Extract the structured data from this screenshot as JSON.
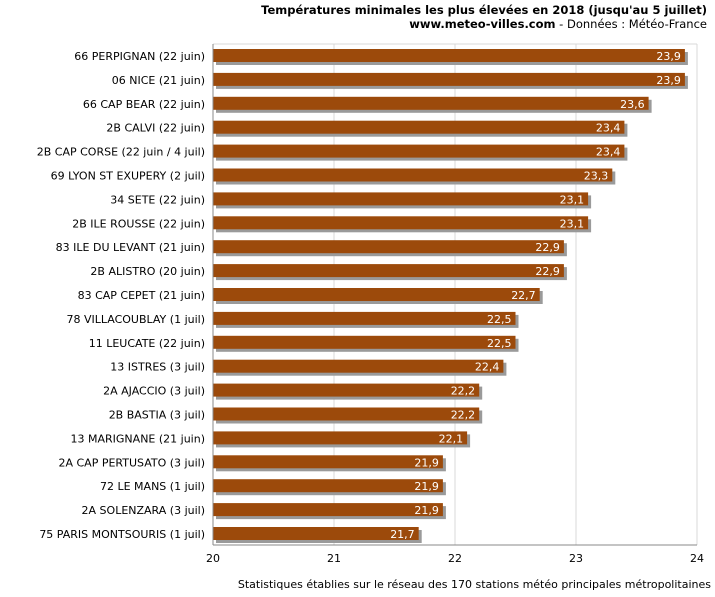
{
  "header": {
    "title": "Températures minimales les plus élevées en 2018 (jusqu'au 5 juillet)",
    "site": "www.meteo-villes.com",
    "source": " - Données : Météo-France"
  },
  "footer": {
    "note": "Statistiques établies sur le réseau des 170 stations météo principales métropolitaines"
  },
  "colors": {
    "bar": "#9c4a0b",
    "bar_shadow": "#9a9a9a",
    "grid": "#d8d8d8",
    "axis": "#888888"
  },
  "chart_data": {
    "type": "bar",
    "orientation": "horizontal",
    "categories": [
      "66 PERPIGNAN (22 juin)",
      "06 NICE (21 juin)",
      "66 CAP BEAR (22 juin)",
      "2B CALVI (22 juin)",
      "2B CAP CORSE (22 juin / 4 juil)",
      "69 LYON ST EXUPERY (2 juil)",
      "34 SETE (22 juin)",
      "2B ILE ROUSSE (22 juin)",
      "83 ILE DU LEVANT (21 juin)",
      "2B ALISTRO (20 juin)",
      "83 CAP CEPET (21 juin)",
      "78 VILLACOUBLAY (1 juil)",
      "11 LEUCATE (22 juin)",
      "13 ISTRES (3 juil)",
      "2A AJACCIO (3 juil)",
      "2B BASTIA (3 juil)",
      "13 MARIGNANE (21 juin)",
      "2A CAP PERTUSATO (3 juil)",
      "72 LE MANS (1 juil)",
      "2A SOLENZARA (3 juil)",
      "75 PARIS MONTSOURIS (1 juil)"
    ],
    "values": [
      23.9,
      23.9,
      23.6,
      23.4,
      23.4,
      23.3,
      23.1,
      23.1,
      22.9,
      22.9,
      22.7,
      22.5,
      22.5,
      22.4,
      22.2,
      22.2,
      22.1,
      21.9,
      21.9,
      21.9,
      21.7
    ],
    "value_labels": [
      "23,9",
      "23,9",
      "23,6",
      "23,4",
      "23,4",
      "23,3",
      "23,1",
      "23,1",
      "22,9",
      "22,9",
      "22,7",
      "22,5",
      "22,5",
      "22,4",
      "22,2",
      "22,2",
      "22,1",
      "21,9",
      "21,9",
      "21,9",
      "21,7"
    ],
    "xlim": [
      20,
      24
    ],
    "xticks": [
      "20",
      "21",
      "22",
      "23",
      "24"
    ],
    "grid": true
  }
}
